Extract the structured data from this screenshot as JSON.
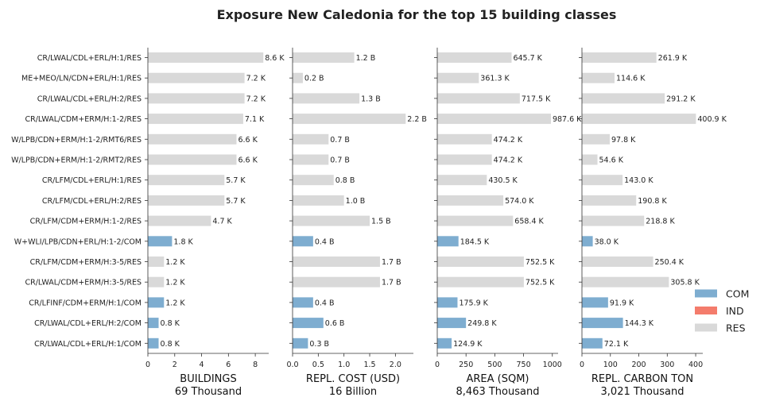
{
  "chart_data": {
    "type": "bar",
    "orientation": "horizontal",
    "title": "Exposure New Caledonia for the top 15 building classes",
    "categories": [
      "CR/LWAL/CDL+ERL/H:1/RES",
      "ME+MEO/LN/CDN+ERL/H:1/RES",
      "CR/LWAL/CDL+ERL/H:2/RES",
      "CR/LWAL/CDM+ERM/H:1-2/RES",
      "W/LPB/CDN+ERM/H:1-2/RMT6/RES",
      "W/LPB/CDN+ERM/H:1-2/RMT2/RES",
      "CR/LFM/CDL+ERL/H:1/RES",
      "CR/LFM/CDL+ERL/H:2/RES",
      "CR/LFM/CDM+ERM/H:1-2/RES",
      "W+WLI/LPB/CDN+ERL/H:1-2/COM",
      "CR/LFM/CDM+ERM/H:3-5/RES",
      "CR/LWAL/CDM+ERM/H:3-5/RES",
      "CR/LFINF/CDM+ERM/H:1/COM",
      "CR/LWAL/CDL+ERL/H:2/COM",
      "CR/LWAL/CDL+ERL/H:1/COM"
    ],
    "occupancy": [
      "RES",
      "RES",
      "RES",
      "RES",
      "RES",
      "RES",
      "RES",
      "RES",
      "RES",
      "COM",
      "RES",
      "RES",
      "COM",
      "COM",
      "COM"
    ],
    "panels": [
      {
        "xlabel": "BUILDINGS",
        "total": "69 Thousand",
        "xlim": [
          0,
          9
        ],
        "ticks": [
          0,
          2,
          4,
          6,
          8
        ],
        "tick_labels": [
          "0",
          "2",
          "4",
          "6",
          "8"
        ],
        "values": [
          8.6,
          7.2,
          7.2,
          7.1,
          6.6,
          6.6,
          5.7,
          5.7,
          4.7,
          1.8,
          1.2,
          1.2,
          1.2,
          0.8,
          0.8
        ],
        "value_labels": [
          "8.6 K",
          "7.2 K",
          "7.2 K",
          "7.1 K",
          "6.6 K",
          "6.6 K",
          "5.7 K",
          "5.7 K",
          "4.7 K",
          "1.8 K",
          "1.2 K",
          "1.2 K",
          "1.2 K",
          "0.8 K",
          "0.8 K"
        ]
      },
      {
        "xlabel": "REPL. COST (USD)",
        "total": "16 Billion",
        "xlim": [
          0,
          2.35
        ],
        "ticks": [
          0,
          0.5,
          1.0,
          1.5,
          2.0
        ],
        "tick_labels": [
          "0.0",
          "0.5",
          "1.0",
          "1.5",
          "2.0"
        ],
        "values": [
          1.2,
          0.2,
          1.3,
          2.2,
          0.7,
          0.7,
          0.8,
          1.0,
          1.5,
          0.4,
          1.7,
          1.7,
          0.4,
          0.6,
          0.3
        ],
        "value_labels": [
          "1.2 B",
          "0.2 B",
          "1.3 B",
          "2.2 B",
          "0.7 B",
          "0.7 B",
          "0.8 B",
          "1.0 B",
          "1.5 B",
          "0.4 B",
          "1.7 B",
          "1.7 B",
          "0.4 B",
          "0.6 B",
          "0.3 B"
        ]
      },
      {
        "xlabel": "AREA (SQM)",
        "total": "8,463 Thousand",
        "xlim": [
          0,
          1050
        ],
        "ticks": [
          0,
          250,
          500,
          750,
          1000
        ],
        "tick_labels": [
          "0",
          "250",
          "500",
          "750",
          "1000"
        ],
        "values": [
          645.7,
          361.3,
          717.5,
          987.6,
          474.2,
          474.2,
          430.5,
          574.0,
          658.4,
          184.5,
          752.5,
          752.5,
          175.9,
          249.8,
          124.9
        ],
        "value_labels": [
          "645.7 K",
          "361.3 K",
          "717.5 K",
          "987.6 K",
          "474.2 K",
          "474.2 K",
          "430.5 K",
          "574.0 K",
          "658.4 K",
          "184.5 K",
          "752.5 K",
          "752.5 K",
          "175.9 K",
          "249.8 K",
          "124.9 K"
        ]
      },
      {
        "xlabel": "REPL. CARBON TON",
        "total": "3,021 Thousand",
        "xlim": [
          0,
          425
        ],
        "ticks": [
          0,
          100,
          200,
          300,
          400
        ],
        "tick_labels": [
          "0",
          "100",
          "200",
          "300",
          "400"
        ],
        "values": [
          261.9,
          114.6,
          291.2,
          400.9,
          97.8,
          54.6,
          143.0,
          190.8,
          218.8,
          38.0,
          250.4,
          305.8,
          91.9,
          144.3,
          72.1
        ],
        "value_labels": [
          "261.9 K",
          "114.6 K",
          "291.2 K",
          "400.9 K",
          "97.8 K",
          "54.6 K",
          "143.0 K",
          "190.8 K",
          "218.8 K",
          "38.0 K",
          "250.4 K",
          "305.8 K",
          "91.9 K",
          "144.3 K",
          "72.1 K"
        ]
      }
    ],
    "legend": {
      "placement": "right",
      "entries": [
        {
          "label": "COM",
          "color": "#7eadd0"
        },
        {
          "label": "IND",
          "color": "#f47c6c"
        },
        {
          "label": "RES",
          "color": "#d9d9d9"
        }
      ]
    },
    "grid": false
  }
}
